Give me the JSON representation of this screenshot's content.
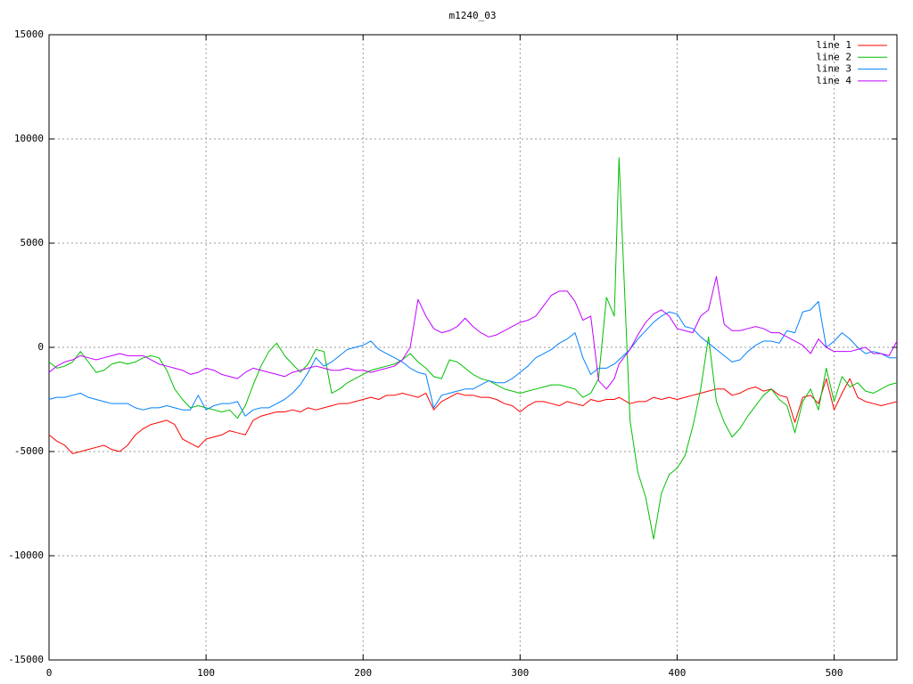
{
  "chart_data": {
    "type": "line",
    "title": "m1240_03",
    "x": [
      0,
      5,
      10,
      15,
      20,
      25,
      30,
      35,
      40,
      45,
      50,
      55,
      60,
      65,
      70,
      75,
      80,
      85,
      90,
      95,
      100,
      105,
      110,
      115,
      120,
      125,
      130,
      135,
      140,
      145,
      150,
      155,
      160,
      165,
      170,
      175,
      180,
      185,
      190,
      195,
      200,
      205,
      210,
      215,
      220,
      225,
      230,
      235,
      240,
      245,
      250,
      255,
      260,
      265,
      270,
      275,
      280,
      285,
      290,
      295,
      300,
      305,
      310,
      315,
      320,
      325,
      330,
      335,
      340,
      345,
      350,
      355,
      360,
      363,
      370,
      375,
      380,
      385,
      390,
      395,
      400,
      405,
      410,
      415,
      420,
      425,
      430,
      435,
      440,
      445,
      450,
      455,
      460,
      465,
      470,
      475,
      480,
      485,
      490,
      495,
      500,
      505,
      510,
      515,
      520,
      525,
      530,
      535,
      540
    ],
    "series": [
      {
        "name": "line 1",
        "color": "#ff0000",
        "values": [
          -4200,
          -4500,
          -4700,
          -5100,
          -5000,
          -4900,
          -4800,
          -4700,
          -4900,
          -5000,
          -4700,
          -4200,
          -3900,
          -3700,
          -3600,
          -3500,
          -3700,
          -4400,
          -4600,
          -4800,
          -4400,
          -4300,
          -4200,
          -4000,
          -4100,
          -4200,
          -3500,
          -3300,
          -3200,
          -3100,
          -3100,
          -3000,
          -3100,
          -2900,
          -3000,
          -2900,
          -2800,
          -2700,
          -2700,
          -2600,
          -2500,
          -2400,
          -2500,
          -2300,
          -2300,
          -2200,
          -2300,
          -2400,
          -2200,
          -3000,
          -2600,
          -2400,
          -2200,
          -2300,
          -2300,
          -2400,
          -2400,
          -2500,
          -2700,
          -2800,
          -3100,
          -2800,
          -2600,
          -2600,
          -2700,
          -2800,
          -2600,
          -2700,
          -2800,
          -2500,
          -2600,
          -2500,
          -2500,
          -2400,
          -2700,
          -2600,
          -2600,
          -2400,
          -2500,
          -2400,
          -2500,
          -2400,
          -2300,
          -2200,
          -2100,
          -2000,
          -2000,
          -2300,
          -2200,
          -2000,
          -1900,
          -2100,
          -2000,
          -2300,
          -2400,
          -3600,
          -2400,
          -2300,
          -2700,
          -1500,
          -3000,
          -2200,
          -1500,
          -2400,
          -2600,
          -2700,
          -2800,
          -2700,
          -2600
        ]
      },
      {
        "name": "line 2",
        "color": "#00c000",
        "values": [
          -700,
          -1000,
          -900,
          -700,
          -200,
          -700,
          -1200,
          -1100,
          -800,
          -700,
          -800,
          -700,
          -500,
          -400,
          -500,
          -1100,
          -2000,
          -2500,
          -2900,
          -2800,
          -2900,
          -3000,
          -3100,
          -3000,
          -3400,
          -2800,
          -1800,
          -900,
          -200,
          200,
          -400,
          -800,
          -1200,
          -800,
          -100,
          -200,
          -2200,
          -2000,
          -1700,
          -1500,
          -1300,
          -1100,
          -1000,
          -900,
          -800,
          -600,
          -300,
          -700,
          -1000,
          -1400,
          -1500,
          -600,
          -700,
          -1000,
          -1300,
          -1500,
          -1600,
          -1800,
          -2000,
          -2100,
          -2200,
          -2100,
          -2000,
          -1900,
          -1800,
          -1800,
          -1900,
          -2000,
          -2400,
          -2200,
          -1500,
          2400,
          1500,
          9100,
          -3500,
          -6000,
          -7200,
          -9200,
          -7000,
          -6100,
          -5800,
          -5200,
          -3800,
          -2000,
          500,
          -2600,
          -3600,
          -4300,
          -3900,
          -3300,
          -2800,
          -2300,
          -2000,
          -2500,
          -2800,
          -4100,
          -2600,
          -2000,
          -3000,
          -1000,
          -2600,
          -1400,
          -1900,
          -1700,
          -2100,
          -2200,
          -2000,
          -1800,
          -1700
        ]
      },
      {
        "name": "line 3",
        "color": "#0080ff",
        "values": [
          -2500,
          -2400,
          -2400,
          -2300,
          -2200,
          -2400,
          -2500,
          -2600,
          -2700,
          -2700,
          -2700,
          -2900,
          -3000,
          -2900,
          -2900,
          -2800,
          -2900,
          -3000,
          -3000,
          -2300,
          -3000,
          -2800,
          -2700,
          -2700,
          -2600,
          -3300,
          -3000,
          -2900,
          -2900,
          -2700,
          -2500,
          -2200,
          -1800,
          -1200,
          -500,
          -900,
          -700,
          -400,
          -100,
          0,
          100,
          300,
          -100,
          -300,
          -500,
          -700,
          -1000,
          -1200,
          -1300,
          -2900,
          -2300,
          -2200,
          -2100,
          -2000,
          -2000,
          -1800,
          -1600,
          -1700,
          -1700,
          -1500,
          -1200,
          -900,
          -500,
          -300,
          -100,
          200,
          400,
          700,
          -500,
          -1300,
          -1000,
          -1000,
          -800,
          -600,
          -100,
          400,
          800,
          1200,
          1500,
          1700,
          1600,
          1000,
          900,
          500,
          200,
          -100,
          -400,
          -700,
          -600,
          -200,
          100,
          300,
          300,
          200,
          800,
          700,
          1700,
          1800,
          2200,
          0,
          300,
          700,
          400,
          0,
          -300,
          -200,
          -300,
          -500,
          -500
        ]
      },
      {
        "name": "line 4",
        "color": "#c000ff",
        "values": [
          -1200,
          -900,
          -700,
          -600,
          -400,
          -500,
          -600,
          -500,
          -400,
          -300,
          -400,
          -400,
          -400,
          -600,
          -800,
          -900,
          -1000,
          -1100,
          -1300,
          -1200,
          -1000,
          -1100,
          -1300,
          -1400,
          -1500,
          -1200,
          -1000,
          -1100,
          -1200,
          -1300,
          -1400,
          -1200,
          -1100,
          -1000,
          -900,
          -1000,
          -1100,
          -1100,
          -1000,
          -1100,
          -1100,
          -1200,
          -1100,
          -1000,
          -900,
          -600,
          0,
          2300,
          1500,
          900,
          700,
          800,
          1000,
          1400,
          1000,
          700,
          500,
          600,
          800,
          1000,
          1200,
          1300,
          1500,
          2000,
          2500,
          2700,
          2700,
          2200,
          1300,
          1500,
          -1600,
          -2000,
          -1500,
          -800,
          -100,
          600,
          1200,
          1600,
          1800,
          1500,
          900,
          800,
          700,
          1500,
          1800,
          3400,
          1100,
          800,
          800,
          900,
          1000,
          900,
          700,
          700,
          500,
          300,
          100,
          -300,
          400,
          0,
          -200,
          -200,
          -200,
          -100,
          0,
          -300,
          -300,
          -400,
          300
        ]
      }
    ],
    "xlim": [
      0,
      540
    ],
    "xticks": [
      0,
      100,
      200,
      300,
      400,
      500
    ],
    "ylim": [
      -15000,
      15000
    ],
    "yticks": [
      -15000,
      -10000,
      -5000,
      0,
      5000,
      10000,
      15000
    ],
    "grid": true,
    "legend": "top-right"
  }
}
